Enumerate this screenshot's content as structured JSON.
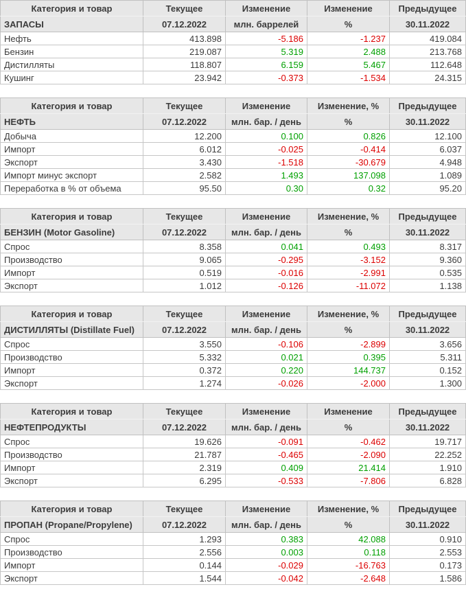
{
  "colors": {
    "positive_change": "#00a000",
    "negative_change": "#dc0000",
    "header_background": "#e7e7e7",
    "table_border": "#c6c6c6",
    "text": "#3c3c3c"
  },
  "chart_data": [
    {
      "type": "table",
      "title": "ЗАПАСЫ",
      "header": [
        "Категория и товар",
        "Текущее",
        "Изменение",
        "Изменение",
        "Предыдущее"
      ],
      "subheader": [
        "ЗАПАСЫ",
        "07.12.2022",
        "млн. баррелей",
        "%",
        "30.11.2022"
      ],
      "rows": [
        [
          "Нефть",
          "413.898",
          "-5.186",
          "-1.237",
          "419.084"
        ],
        [
          "Бензин",
          "219.087",
          "5.319",
          "2.488",
          "213.768"
        ],
        [
          "Дистилляты",
          "118.807",
          "6.159",
          "5.467",
          "112.648"
        ],
        [
          "Кушинг",
          "23.942",
          "-0.373",
          "-1.534",
          "24.315"
        ]
      ]
    },
    {
      "type": "table",
      "title": "НЕФТЬ",
      "header": [
        "Категория и товар",
        "Текущее",
        "Изменение",
        "Изменение, %",
        "Предыдущее"
      ],
      "subheader": [
        "НЕФТЬ",
        "07.12.2022",
        "млн. бар. / день",
        "%",
        "30.11.2022"
      ],
      "rows": [
        [
          "Добыча",
          "12.200",
          "0.100",
          "0.826",
          "12.100"
        ],
        [
          "Импорт",
          "6.012",
          "-0.025",
          "-0.414",
          "6.037"
        ],
        [
          "Экспорт",
          "3.430",
          "-1.518",
          "-30.679",
          "4.948"
        ],
        [
          "Импорт минус экспорт",
          "2.582",
          "1.493",
          "137.098",
          "1.089"
        ],
        [
          "Переработка в % от объема",
          "95.50",
          "0.30",
          "0.32",
          "95.20"
        ]
      ]
    },
    {
      "type": "table",
      "title": "БЕНЗИН (Motor Gasoline)",
      "header": [
        "Категория и товар",
        "Текущее",
        "Изменение",
        "Изменение, %",
        "Предыдущее"
      ],
      "subheader": [
        "БЕНЗИН (Motor Gasoline)",
        "07.12.2022",
        "млн. бар. / день",
        "%",
        "30.11.2022"
      ],
      "rows": [
        [
          "Спрос",
          "8.358",
          "0.041",
          "0.493",
          "8.317"
        ],
        [
          "Производство",
          "9.065",
          "-0.295",
          "-3.152",
          "9.360"
        ],
        [
          "Импорт",
          "0.519",
          "-0.016",
          "-2.991",
          "0.535"
        ],
        [
          "Экспорт",
          "1.012",
          "-0.126",
          "-11.072",
          "1.138"
        ]
      ]
    },
    {
      "type": "table",
      "title": "ДИСТИЛЛЯТЫ (Distillate Fuel)",
      "header": [
        "Категория и товар",
        "Текущее",
        "Изменение",
        "Изменение, %",
        "Предыдущее"
      ],
      "subheader": [
        "ДИСТИЛЛЯТЫ (Distillate Fuel)",
        "07.12.2022",
        "млн. бар. / день",
        "%",
        "30.11.2022"
      ],
      "rows": [
        [
          "Спрос",
          "3.550",
          "-0.106",
          "-2.899",
          "3.656"
        ],
        [
          "Производство",
          "5.332",
          "0.021",
          "0.395",
          "5.311"
        ],
        [
          "Импорт",
          "0.372",
          "0.220",
          "144.737",
          "0.152"
        ],
        [
          "Экспорт",
          "1.274",
          "-0.026",
          "-2.000",
          "1.300"
        ]
      ]
    },
    {
      "type": "table",
      "title": "НЕФТЕПРОДУКТЫ",
      "header": [
        "Категория и товар",
        "Текущее",
        "Изменение",
        "Изменение",
        "Предыдущее"
      ],
      "subheader": [
        "НЕФТЕПРОДУКТЫ",
        "07.12.2022",
        "млн. бар. / день",
        "%",
        "30.11.2022"
      ],
      "rows": [
        [
          "Спрос",
          "19.626",
          "-0.091",
          "-0.462",
          "19.717"
        ],
        [
          "Производство",
          "21.787",
          "-0.465",
          "-2.090",
          "22.252"
        ],
        [
          "Импорт",
          "2.319",
          "0.409",
          "21.414",
          "1.910"
        ],
        [
          "Экспорт",
          "6.295",
          "-0.533",
          "-7.806",
          "6.828"
        ]
      ]
    },
    {
      "type": "table",
      "title": "ПРОПАН (Propane/Propylene)",
      "header": [
        "Категория и товар",
        "Текущее",
        "Изменение",
        "Изменение, %",
        "Предыдущее"
      ],
      "subheader": [
        "ПРОПАН (Propane/Propylene)",
        "07.12.2022",
        "млн. бар. / день",
        "%",
        "30.11.2022"
      ],
      "rows": [
        [
          "Спрос",
          "1.293",
          "0.383",
          "42.088",
          "0.910"
        ],
        [
          "Производство",
          "2.556",
          "0.003",
          "0.118",
          "2.553"
        ],
        [
          "Импорт",
          "0.144",
          "-0.029",
          "-16.763",
          "0.173"
        ],
        [
          "Экспорт",
          "1.544",
          "-0.042",
          "-2.648",
          "1.586"
        ]
      ]
    }
  ]
}
